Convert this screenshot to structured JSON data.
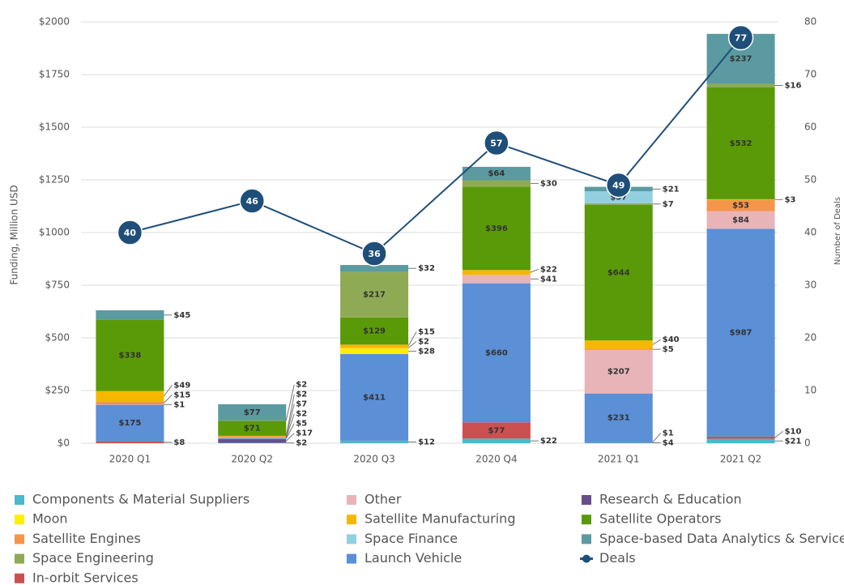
{
  "chart_data": {
    "type": "bar",
    "ylabel": "Funding, Million USD",
    "y2label": "Number of Deals",
    "categories": [
      "2020 Q1",
      "2020 Q2",
      "2020 Q3",
      "2020 Q4",
      "2021 Q1",
      "2021 Q2"
    ],
    "ylim": [
      0,
      2000
    ],
    "yticks": [
      {
        "value": 0,
        "label": "$0"
      },
      {
        "value": 250,
        "label": "$250"
      },
      {
        "value": 500,
        "label": "$500"
      },
      {
        "value": 750,
        "label": "$750"
      },
      {
        "value": 1000,
        "label": "$1000"
      },
      {
        "value": 1250,
        "label": "$1250"
      },
      {
        "value": 1500,
        "label": "$1500"
      },
      {
        "value": 1750,
        "label": "$1750"
      },
      {
        "value": 2000,
        "label": "$2000"
      }
    ],
    "y2lim": [
      0,
      80
    ],
    "y2ticks": [
      0,
      10,
      20,
      30,
      40,
      50,
      60,
      70,
      80
    ],
    "grid": true,
    "stacked": true,
    "legend": "bottom",
    "series": [
      {
        "name": "Components & Material Suppliers",
        "color": "#4bb8cc",
        "values": [
          null,
          2,
          12,
          22,
          4,
          21
        ],
        "value_labels": [
          null,
          "$2",
          "$12",
          "$22",
          "$4",
          "$21"
        ]
      },
      {
        "name": "Other",
        "color": "#e8b4b8",
        "values": [
          1,
          2,
          null,
          41,
          207,
          84
        ],
        "value_labels": [
          "$1",
          "$2",
          null,
          "$41",
          "$207",
          "$84"
        ]
      },
      {
        "name": "Research & Education",
        "color": "#6a4c8c",
        "values": [
          null,
          17,
          null,
          null,
          1,
          null
        ],
        "value_labels": [
          null,
          "$17",
          null,
          null,
          "$1",
          null
        ]
      },
      {
        "name": "Moon",
        "color": "#ffee00",
        "values": [
          null,
          null,
          28,
          null,
          null,
          null
        ],
        "value_labels": [
          null,
          null,
          "$28",
          null,
          null,
          null
        ]
      },
      {
        "name": "Satellite Manufacturing",
        "color": "#f5b800",
        "values": [
          49,
          2,
          15,
          22,
          40,
          3
        ],
        "value_labels": [
          "$49",
          "$2",
          "$15",
          "$22",
          "$40",
          "$3"
        ]
      },
      {
        "name": "Satellite Operators",
        "color": "#5a9a08",
        "values": [
          338,
          71,
          129,
          396,
          644,
          532
        ],
        "value_labels": [
          "$338",
          "$71",
          "$129",
          "$396",
          "$644",
          "$532"
        ]
      },
      {
        "name": "Satellite Engines",
        "color": "#f5954a",
        "values": [
          15,
          7,
          2,
          null,
          5,
          53
        ],
        "value_labels": [
          "$15",
          "$7",
          "$2",
          null,
          "$5",
          "$53"
        ]
      },
      {
        "name": "Space Finance",
        "color": "#92d0e0",
        "values": [
          null,
          null,
          null,
          null,
          57,
          null
        ],
        "value_labels": [
          null,
          null,
          null,
          null,
          "$57",
          null
        ]
      },
      {
        "name": "Space-based Data Analytics & Services",
        "color": "#5b9aa0",
        "values": [
          45,
          77,
          32,
          64,
          21,
          237
        ],
        "value_labels": [
          "$45",
          "$77",
          "$32",
          "$64",
          "$21",
          "$237"
        ]
      },
      {
        "name": "Space Engineering",
        "color": "#8faa55",
        "values": [
          null,
          2,
          217,
          30,
          7,
          16
        ],
        "value_labels": [
          null,
          "$2",
          "$217",
          "$30",
          "$7",
          "$16"
        ]
      },
      {
        "name": "Launch Vehicle",
        "color": "#5b8fd6",
        "values": [
          175,
          5,
          411,
          660,
          231,
          987
        ],
        "value_labels": [
          "$175",
          "$5",
          "$411",
          "$660",
          "$231",
          "$987"
        ]
      },
      {
        "name": "Deals",
        "type": "line",
        "axis": "y2",
        "color": "#1f4e79",
        "values": [
          40,
          46,
          36,
          57,
          49,
          77
        ]
      },
      {
        "name": "In-orbit Services",
        "color": "#cc5050",
        "values": [
          8,
          null,
          null,
          77,
          null,
          10
        ],
        "value_labels": [
          "$8",
          null,
          null,
          "$77",
          null,
          "$10"
        ]
      }
    ]
  }
}
